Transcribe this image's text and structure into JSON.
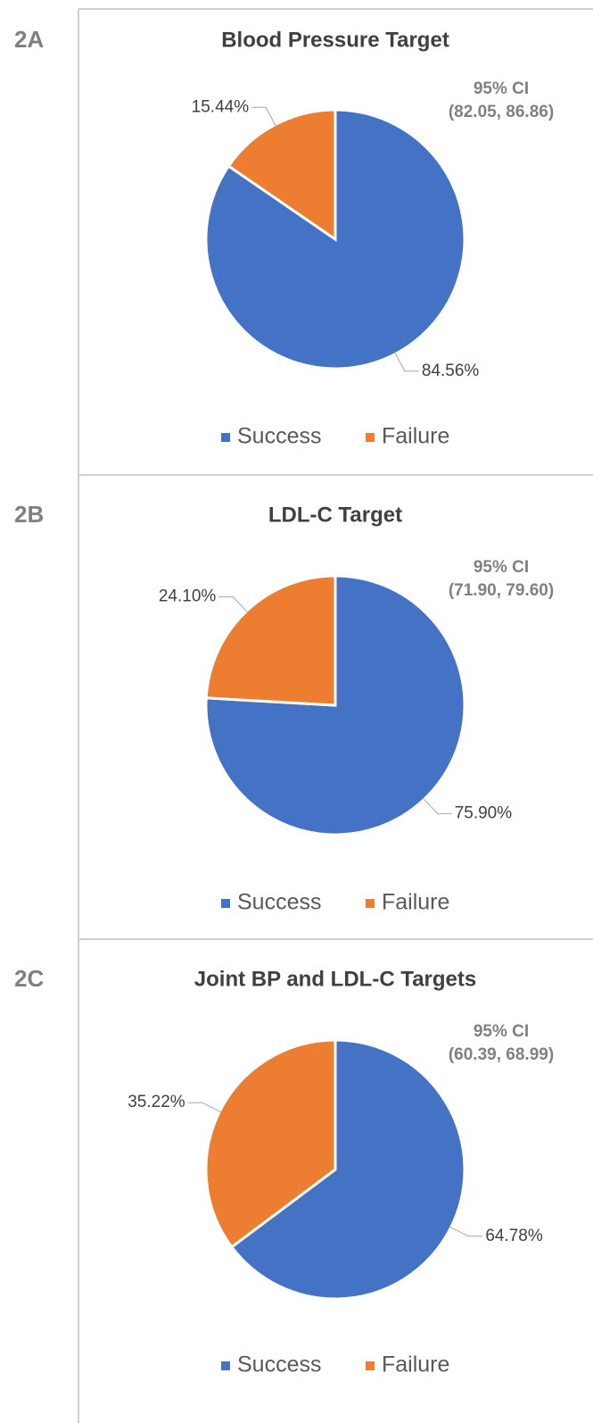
{
  "chart_data": [
    {
      "type": "pie",
      "panel": "2A",
      "title": "Blood Pressure Target",
      "categories": [
        "Success",
        "Failure"
      ],
      "values": [
        84.56,
        15.44
      ],
      "value_labels": [
        "84.56%",
        "15.44%"
      ],
      "colors": [
        "#4472c4",
        "#ed7d31"
      ],
      "annotations": [
        "95% CI",
        "(82.05, 86.86)"
      ],
      "legend": "bottom"
    },
    {
      "type": "pie",
      "panel": "2B",
      "title": "LDL-C Target",
      "categories": [
        "Success",
        "Failure"
      ],
      "values": [
        75.9,
        24.1
      ],
      "value_labels": [
        "75.90%",
        "24.10%"
      ],
      "colors": [
        "#4472c4",
        "#ed7d31"
      ],
      "annotations": [
        "95% CI",
        "(71.90, 79.60)"
      ],
      "legend": "bottom"
    },
    {
      "type": "pie",
      "panel": "2C",
      "title": "Joint BP and LDL-C Targets",
      "categories": [
        "Success",
        "Failure"
      ],
      "values": [
        64.78,
        35.22
      ],
      "value_labels": [
        "64.78%",
        "35.22%"
      ],
      "colors": [
        "#4472c4",
        "#ed7d31"
      ],
      "annotations": [
        "95% CI",
        "(60.39, 68.99)"
      ],
      "legend": "bottom"
    }
  ]
}
